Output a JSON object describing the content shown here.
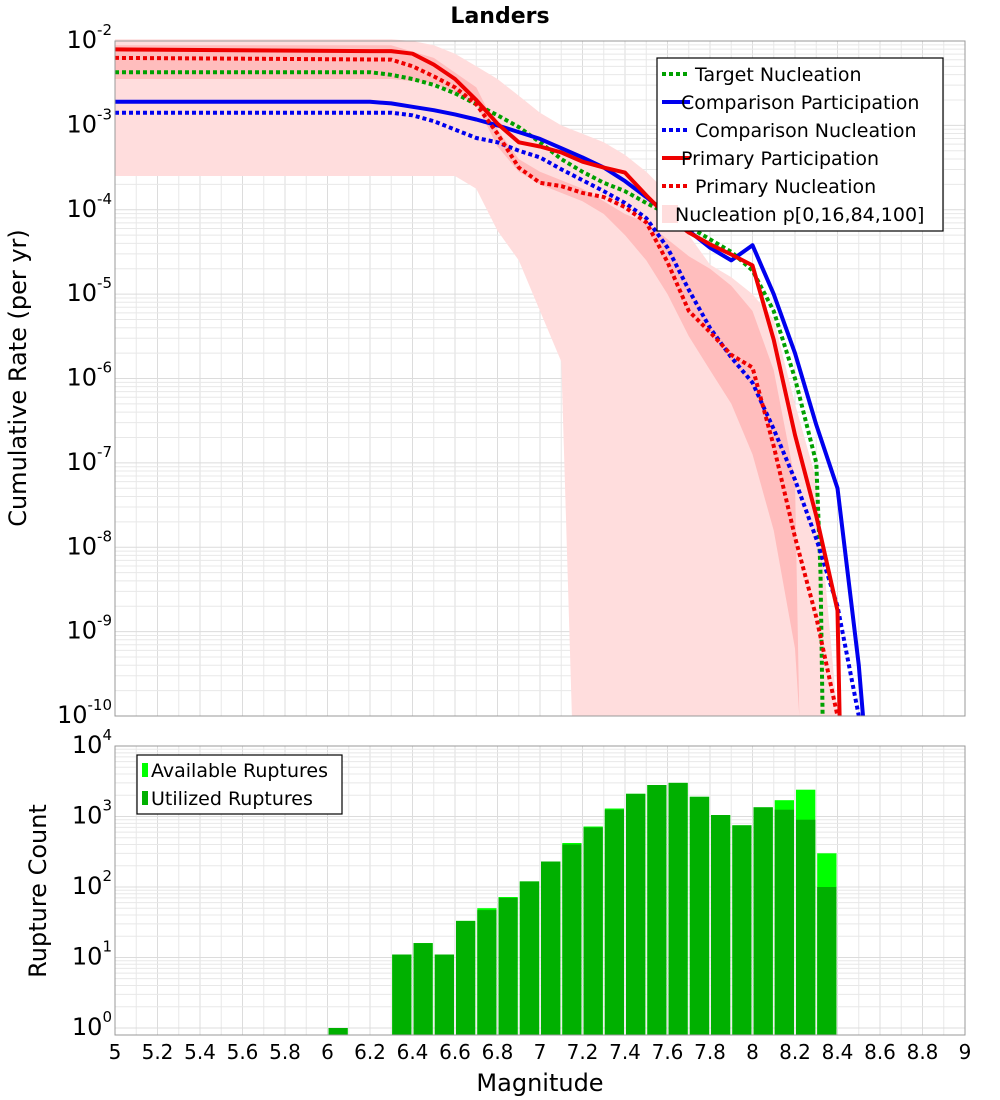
{
  "chart_data": [
    {
      "type": "line",
      "title": "Landers",
      "xlabel": "",
      "ylabel": "Cumulative Rate (per yr)",
      "x_range": [
        5,
        9
      ],
      "y_range_log10": [
        -10,
        -2
      ],
      "y_ticks": [
        {
          "base": "10",
          "exp": "-2",
          "value": -2
        },
        {
          "base": "10",
          "exp": "-3",
          "value": -3
        },
        {
          "base": "10",
          "exp": "-4",
          "value": -4
        },
        {
          "base": "10",
          "exp": "-5",
          "value": -5
        },
        {
          "base": "10",
          "exp": "-6",
          "value": -6
        },
        {
          "base": "10",
          "exp": "-7",
          "value": -7
        },
        {
          "base": "10",
          "exp": "-8",
          "value": -8
        },
        {
          "base": "10",
          "exp": "-9",
          "value": -9
        },
        {
          "base": "10",
          "exp": "-10",
          "value": -10
        }
      ],
      "bands": [
        {
          "name": "Nucleation p[0,100]",
          "color": "#ffdddd",
          "x": [
            5.0,
            6.3,
            6.4,
            6.5,
            6.6,
            6.7,
            6.8,
            6.9,
            7.0,
            7.1,
            7.15,
            7.2,
            7.3,
            7.4,
            7.5,
            7.6,
            7.7,
            7.8,
            7.9,
            8.0,
            8.1,
            8.2,
            8.3,
            8.4
          ],
          "upper_log10": [
            -1.98,
            -1.98,
            -2.0,
            -2.05,
            -2.15,
            -2.3,
            -2.45,
            -2.65,
            -2.85,
            -3.0,
            -3.05,
            -3.1,
            -3.2,
            -3.35,
            -3.55,
            -3.8,
            -4.3,
            -4.65,
            -4.8,
            -5.0,
            -5.3,
            -6.3,
            -7.2,
            -10
          ],
          "lower_log10": [
            -3.6,
            -3.6,
            -3.6,
            -3.6,
            -3.6,
            -3.75,
            -4.25,
            -4.6,
            -5.2,
            -5.8,
            -10,
            -10,
            -10,
            -10,
            -10,
            -10,
            -10,
            -10,
            -10,
            -10,
            -10,
            -10,
            -10,
            -10
          ]
        },
        {
          "name": "Nucleation p[16,84]",
          "color": "#ffbdbd",
          "x": [
            5.0,
            6.3,
            6.5,
            6.7,
            6.8,
            6.9,
            7.0,
            7.1,
            7.2,
            7.3,
            7.4,
            7.5,
            7.6,
            7.7,
            7.8,
            7.9,
            8.0,
            8.1,
            8.2,
            8.22
          ],
          "upper_log10": [
            -2.05,
            -2.05,
            -2.2,
            -2.55,
            -3.05,
            -3.4,
            -3.55,
            -3.65,
            -3.75,
            -3.9,
            -4.05,
            -4.15,
            -4.35,
            -4.55,
            -4.7,
            -4.9,
            -5.2,
            -5.9,
            -7.2,
            -10
          ],
          "lower_log10": [
            -2.45,
            -2.45,
            -2.5,
            -2.75,
            -3.25,
            -3.55,
            -3.7,
            -3.8,
            -3.9,
            -4.05,
            -4.3,
            -4.6,
            -5.0,
            -5.5,
            -5.9,
            -6.3,
            -6.9,
            -7.8,
            -9.2,
            -10
          ]
        }
      ],
      "series": [
        {
          "name": "Target Nucleation",
          "color": "#00a000",
          "dash": "dot",
          "x": [
            5.0,
            6.2,
            6.3,
            6.4,
            6.5,
            6.6,
            6.7,
            6.8,
            6.9,
            7.0,
            7.1,
            7.2,
            7.3,
            7.4,
            7.5,
            7.6,
            7.7,
            7.8,
            7.9,
            8.0,
            8.1,
            8.2,
            8.3,
            8.32,
            8.33
          ],
          "y_log10": [
            -2.37,
            -2.37,
            -2.4,
            -2.45,
            -2.52,
            -2.62,
            -2.75,
            -2.88,
            -3.02,
            -3.2,
            -3.4,
            -3.55,
            -3.68,
            -3.78,
            -3.92,
            -4.05,
            -4.2,
            -4.35,
            -4.5,
            -4.72,
            -5.2,
            -6.0,
            -7.0,
            -8.3,
            -10
          ]
        },
        {
          "name": "Comparison Participation",
          "color": "#0000ee",
          "dash": "solid",
          "x": [
            5.0,
            6.2,
            6.3,
            6.4,
            6.5,
            6.6,
            6.7,
            6.8,
            6.9,
            7.0,
            7.1,
            7.2,
            7.3,
            7.4,
            7.5,
            7.6,
            7.7,
            7.8,
            7.9,
            8.0,
            8.1,
            8.2,
            8.3,
            8.4,
            8.5,
            8.52
          ],
          "y_log10": [
            -2.72,
            -2.72,
            -2.74,
            -2.78,
            -2.82,
            -2.87,
            -2.93,
            -3.0,
            -3.08,
            -3.16,
            -3.27,
            -3.38,
            -3.5,
            -3.66,
            -3.85,
            -4.05,
            -4.25,
            -4.45,
            -4.6,
            -4.42,
            -5.0,
            -5.7,
            -6.55,
            -7.3,
            -9.4,
            -10
          ]
        },
        {
          "name": "Comparison Nucleation",
          "color": "#0000ee",
          "dash": "dot",
          "x": [
            5.0,
            6.3,
            6.4,
            6.5,
            6.6,
            6.7,
            6.8,
            6.9,
            7.0,
            7.1,
            7.2,
            7.3,
            7.4,
            7.5,
            7.6,
            7.7,
            7.8,
            7.9,
            8.0,
            8.1,
            8.2,
            8.3,
            8.4,
            8.5
          ],
          "y_log10": [
            -2.85,
            -2.85,
            -2.88,
            -2.95,
            -3.05,
            -3.15,
            -3.2,
            -3.3,
            -3.38,
            -3.52,
            -3.65,
            -3.78,
            -3.92,
            -4.1,
            -4.45,
            -4.95,
            -5.4,
            -5.75,
            -6.05,
            -6.6,
            -7.2,
            -7.9,
            -8.7,
            -10
          ]
        },
        {
          "name": "Primary Participation",
          "color": "#ee0000",
          "dash": "solid",
          "x": [
            5.0,
            6.2,
            6.3,
            6.4,
            6.5,
            6.6,
            6.7,
            6.8,
            6.9,
            7.0,
            7.1,
            7.2,
            7.3,
            7.4,
            7.5,
            7.6,
            7.7,
            7.8,
            7.9,
            8.0,
            8.1,
            8.2,
            8.3,
            8.4,
            8.41
          ],
          "y_log10": [
            -2.1,
            -2.12,
            -2.12,
            -2.15,
            -2.28,
            -2.45,
            -2.7,
            -2.98,
            -3.2,
            -3.25,
            -3.32,
            -3.43,
            -3.5,
            -3.56,
            -3.83,
            -4.08,
            -4.27,
            -4.41,
            -4.53,
            -4.66,
            -5.54,
            -6.67,
            -7.63,
            -8.75,
            -10
          ]
        },
        {
          "name": "Primary Nucleation",
          "color": "#ee0000",
          "dash": "dot",
          "x": [
            5.0,
            6.3,
            6.4,
            6.5,
            6.6,
            6.7,
            6.8,
            6.9,
            7.0,
            7.1,
            7.2,
            7.3,
            7.4,
            7.5,
            7.6,
            7.7,
            7.8,
            7.9,
            8.0,
            8.1,
            8.2,
            8.3,
            8.4
          ],
          "y_log10": [
            -2.2,
            -2.22,
            -2.3,
            -2.42,
            -2.55,
            -2.75,
            -3.1,
            -3.5,
            -3.68,
            -3.72,
            -3.8,
            -3.85,
            -3.97,
            -4.15,
            -4.62,
            -5.2,
            -5.45,
            -5.72,
            -5.87,
            -6.8,
            -7.88,
            -8.83,
            -10
          ]
        }
      ],
      "legend": {
        "position": "top-right",
        "entries": [
          {
            "label": "Target Nucleation",
            "color": "#00a000",
            "style": "dot"
          },
          {
            "label": "Comparison Participation",
            "color": "#0000ee",
            "style": "solid"
          },
          {
            "label": "Comparison Nucleation",
            "color": "#0000ee",
            "style": "dot"
          },
          {
            "label": "Primary Participation",
            "color": "#ee0000",
            "style": "solid"
          },
          {
            "label": "Primary Nucleation",
            "color": "#ee0000",
            "style": "dot"
          },
          {
            "label": "Nucleation p[0,16,84,100]",
            "color": "#ffdddd",
            "style": "band"
          }
        ]
      }
    },
    {
      "type": "bar",
      "title": "",
      "xlabel": "Magnitude",
      "ylabel": "Rupture Count",
      "x_range": [
        5,
        9
      ],
      "y_range_log10": [
        -0.1,
        4
      ],
      "x_ticks": [
        "5",
        "5.2",
        "5.4",
        "5.6",
        "5.8",
        "6",
        "6.2",
        "6.4",
        "6.6",
        "6.8",
        "7",
        "7.2",
        "7.4",
        "7.6",
        "7.8",
        "8",
        "8.2",
        "8.4",
        "8.6",
        "8.8",
        "9"
      ],
      "y_ticks": [
        {
          "base": "10",
          "exp": "0",
          "value": 0
        },
        {
          "base": "10",
          "exp": "1",
          "value": 1
        },
        {
          "base": "10",
          "exp": "2",
          "value": 2
        },
        {
          "base": "10",
          "exp": "3",
          "value": 3
        },
        {
          "base": "10",
          "exp": "4",
          "value": 4
        }
      ],
      "bin_width": 0.1,
      "bin_centers": [
        6.05,
        6.35,
        6.45,
        6.55,
        6.65,
        6.75,
        6.85,
        6.95,
        7.05,
        7.15,
        7.25,
        7.35,
        7.45,
        7.55,
        7.65,
        7.75,
        7.85,
        7.95,
        8.05,
        8.15,
        8.25,
        8.35
      ],
      "series": [
        {
          "name": "Available Ruptures",
          "color": "#00ff00",
          "values": [
            1,
            11,
            16,
            11,
            33,
            50,
            72,
            120,
            230,
            420,
            720,
            1300,
            2100,
            2800,
            3000,
            1900,
            1050,
            750,
            1350,
            1700,
            2400,
            300
          ]
        },
        {
          "name": "Utilized Ruptures",
          "color": "#00b000",
          "values": [
            1,
            11,
            16,
            11,
            33,
            47,
            70,
            120,
            230,
            400,
            700,
            1250,
            2100,
            2800,
            3000,
            1900,
            1050,
            750,
            1350,
            1250,
            900,
            100
          ]
        }
      ],
      "legend": {
        "position": "top-left",
        "entries": [
          {
            "label": "Available Ruptures",
            "color": "#00ff00"
          },
          {
            "label": "Utilized Ruptures",
            "color": "#00b000"
          }
        ]
      }
    }
  ]
}
